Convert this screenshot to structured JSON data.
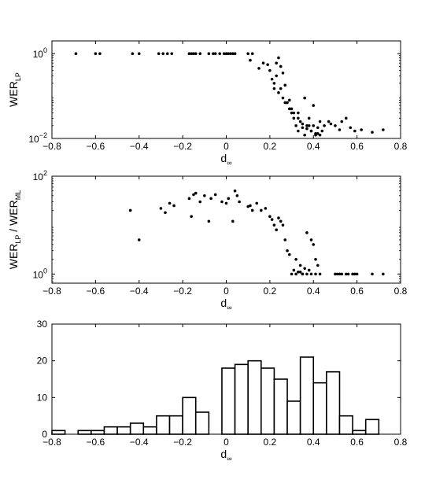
{
  "chart_data": [
    {
      "type": "scatter",
      "ylabel_main": "WER",
      "ylabel_sub": "LP",
      "xlabel_main": "d",
      "xlabel_sub": "∞",
      "xlim": [
        -0.8,
        0.8
      ],
      "ylim": [
        0.01,
        2
      ],
      "yscale": "log",
      "xticks": [
        "−0.8",
        "−0.6",
        "−0.4",
        "−0.2",
        "0",
        "0.2",
        "0.4",
        "0.6",
        "0.8"
      ],
      "yticks": [
        {
          "base": "10",
          "exp": "0",
          "v": 1
        },
        {
          "base": "10",
          "exp": "−2",
          "v": 0.01
        }
      ],
      "x": [
        -0.69,
        -0.6,
        -0.58,
        -0.43,
        -0.4,
        -0.31,
        -0.29,
        -0.27,
        -0.25,
        -0.17,
        -0.16,
        -0.15,
        -0.14,
        -0.12,
        -0.08,
        -0.06,
        -0.05,
        -0.03,
        -0.01,
        0.0,
        0.01,
        0.02,
        0.03,
        0.04,
        0.1,
        0.11,
        0.12,
        0.15,
        0.17,
        0.19,
        0.2,
        0.21,
        0.22,
        0.23,
        0.24,
        0.25,
        0.26,
        0.27,
        0.22,
        0.24,
        0.27,
        0.29,
        0.3,
        0.31,
        0.32,
        0.33,
        0.34,
        0.35,
        0.36,
        0.37,
        0.38,
        0.39,
        0.4,
        0.41,
        0.42,
        0.43,
        0.44,
        0.29,
        0.33,
        0.36,
        0.38,
        0.4,
        0.42,
        0.48,
        0.5,
        0.52,
        0.53,
        0.55,
        0.57,
        0.59,
        0.62,
        0.67,
        0.72,
        0.23,
        0.25,
        0.26,
        0.28,
        0.3,
        0.31,
        0.33,
        0.35,
        0.37,
        0.39,
        0.41,
        0.43,
        0.45,
        0.47
      ],
      "y": [
        1,
        1,
        1,
        1,
        1,
        1,
        1,
        1,
        1,
        1,
        1,
        1,
        1,
        1,
        1,
        1,
        1,
        1,
        1,
        1,
        1,
        1,
        1,
        1,
        1,
        0.7,
        1,
        0.45,
        0.6,
        0.55,
        0.4,
        0.25,
        0.2,
        0.6,
        0.8,
        0.5,
        0.35,
        0.18,
        0.15,
        0.12,
        0.07,
        0.08,
        0.04,
        0.03,
        0.02,
        0.015,
        0.025,
        0.018,
        0.012,
        0.02,
        0.03,
        0.015,
        0.02,
        0.012,
        0.018,
        0.025,
        0.015,
        0.05,
        0.04,
        0.09,
        0.02,
        0.06,
        0.013,
        0.022,
        0.02,
        0.016,
        0.025,
        0.03,
        0.018,
        0.015,
        0.016,
        0.014,
        0.016,
        0.3,
        0.15,
        0.09,
        0.07,
        0.05,
        0.04,
        0.03,
        0.022,
        0.017,
        0.015,
        0.013,
        0.012,
        0.02,
        0.025
      ]
    },
    {
      "type": "scatter",
      "ylabel_main": "WER",
      "ylabel_sub": "LP",
      "ylabel_mid": " / WER",
      "ylabel_sub2": "ML",
      "xlabel_main": "d",
      "xlabel_sub": "∞",
      "xlim": [
        -0.8,
        0.8
      ],
      "ylim": [
        0.65,
        100
      ],
      "yscale": "log",
      "xticks": [
        "−0.8",
        "−0.6",
        "−0.4",
        "−0.2",
        "0",
        "0.2",
        "0.4",
        "0.6",
        "0.8"
      ],
      "yticks": [
        {
          "base": "10",
          "exp": "2",
          "v": 100
        },
        {
          "base": "10",
          "exp": "0",
          "v": 1
        }
      ],
      "x": [
        -0.44,
        -0.4,
        -0.3,
        -0.28,
        -0.26,
        -0.24,
        -0.17,
        -0.16,
        -0.15,
        -0.14,
        -0.12,
        -0.1,
        -0.08,
        -0.07,
        -0.05,
        -0.02,
        0.0,
        0.01,
        0.03,
        0.04,
        0.05,
        0.06,
        0.1,
        0.11,
        0.12,
        0.14,
        0.16,
        0.18,
        0.2,
        0.21,
        0.22,
        0.23,
        0.24,
        0.25,
        0.26,
        0.27,
        0.28,
        0.29,
        0.3,
        0.31,
        0.32,
        0.33,
        0.34,
        0.35,
        0.36,
        0.37,
        0.38,
        0.39,
        0.4,
        0.41,
        0.42,
        0.43,
        0.5,
        0.51,
        0.52,
        0.53,
        0.55,
        0.56,
        0.58,
        0.59,
        0.6,
        0.67,
        0.72,
        0.35,
        0.37,
        0.39,
        0.41,
        0.32,
        0.34
      ],
      "y": [
        20,
        5,
        22,
        18,
        28,
        25,
        35,
        15,
        42,
        45,
        30,
        40,
        12,
        35,
        42,
        30,
        28,
        35,
        12,
        50,
        40,
        30,
        24,
        25,
        20,
        28,
        20,
        22,
        15,
        13,
        10,
        8,
        14,
        12,
        10,
        5,
        3,
        2.5,
        1,
        1.2,
        1,
        1.1,
        1.5,
        1,
        1.3,
        7,
        1.2,
        5,
        4,
        2,
        1.5,
        1,
        1,
        1,
        1,
        1,
        1,
        1,
        1,
        1,
        1,
        1,
        1,
        1,
        1,
        1,
        1,
        2,
        1.1
      ]
    },
    {
      "type": "bar",
      "xlabel_main": "d",
      "xlabel_sub": "∞",
      "xlim": [
        -0.8,
        0.8
      ],
      "ylim": [
        0,
        30
      ],
      "xticks": [
        "−0.8",
        "−0.6",
        "−0.4",
        "−0.2",
        "0",
        "0.2",
        "0.4",
        "0.6",
        "0.8"
      ],
      "yticks": [
        "0",
        "10",
        "20",
        "30"
      ],
      "bin_start": -0.8,
      "bin_width": 0.06,
      "values": [
        1,
        0,
        1,
        1,
        2,
        2,
        3,
        2,
        5,
        5,
        10,
        6,
        0,
        18,
        19,
        20,
        18,
        15,
        9,
        21,
        14,
        17,
        5,
        1,
        4,
        0
      ]
    }
  ]
}
